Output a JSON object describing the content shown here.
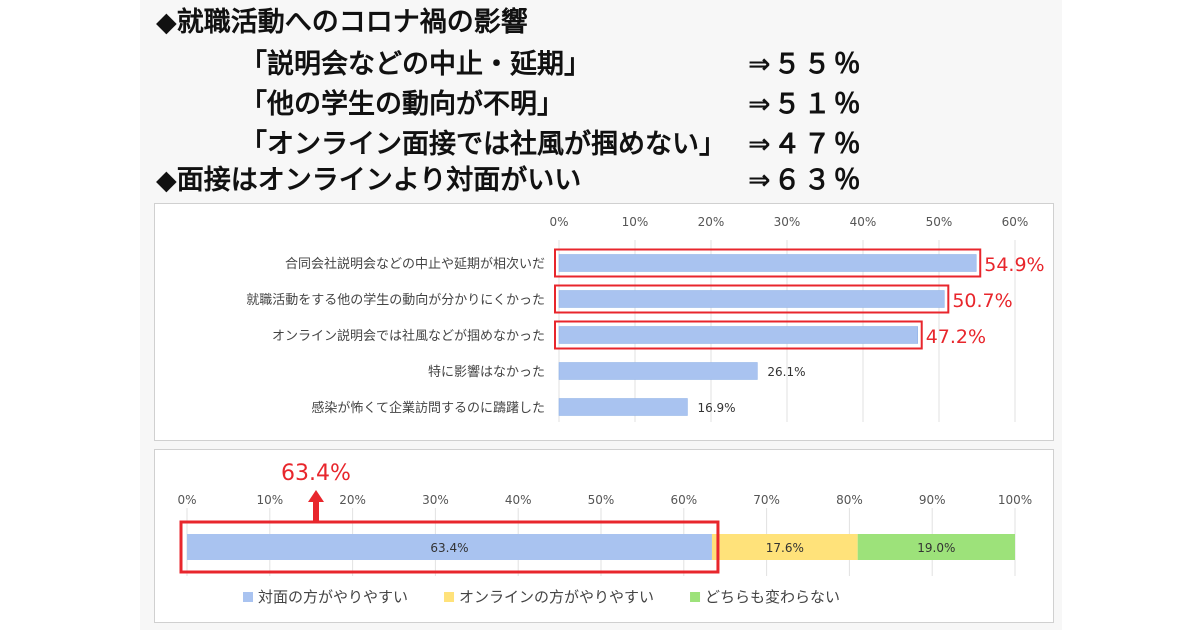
{
  "headlines": {
    "h1": "◆就職活動へのコロナ禍の影響",
    "h2": "「説明会などの中止・延期」",
    "h2_pct": "⇒５５％",
    "h3": "「他の学生の動向が不明」",
    "h3_pct": "⇒５１％",
    "h4": "「オンライン面接では社風が掴めない」",
    "h4_pct": "⇒４７％",
    "h5": "◆面接はオンラインより対面がいい",
    "h5_pct": "⇒６３％"
  },
  "chart_data": [
    {
      "type": "bar",
      "orientation": "horizontal",
      "categories": [
        "合同会社説明会などの中止や延期が相次いだ",
        "就職活動をする他の学生の動向が分かりにくかった",
        "オンライン説明会では社風などが掴めなかった",
        "特に影響はなかった",
        "感染が怖くて企業訪問するのに躊躇した"
      ],
      "values": [
        54.9,
        50.7,
        47.2,
        26.1,
        16.9
      ],
      "labels": [
        "54.9%",
        "50.7%",
        "47.2%",
        "26.1%",
        "16.9%"
      ],
      "highlighted": [
        true,
        true,
        true,
        false,
        false
      ],
      "xticks": [
        "0%",
        "10%",
        "20%",
        "30%",
        "40%",
        "50%",
        "60%"
      ],
      "xlim": [
        0,
        60
      ],
      "grid": true,
      "colors": {
        "bar": "#a9c3f0",
        "highlight": "#e8262c",
        "label": "#e8262c"
      }
    },
    {
      "type": "bar",
      "orientation": "horizontal",
      "stacked": true,
      "series": [
        {
          "name": "対面の方がやりやすい",
          "values": [
            63.4
          ],
          "label": "63.4%",
          "color": "#a9c3f0"
        },
        {
          "name": "オンラインの方がやりやすい",
          "values": [
            17.6
          ],
          "label": "17.6%",
          "color": "#ffe27a"
        },
        {
          "name": "どちらも変わらない",
          "values": [
            19.0
          ],
          "label": "19.0%",
          "color": "#9de27a"
        }
      ],
      "xticks": [
        "0%",
        "10%",
        "20%",
        "30%",
        "40%",
        "50%",
        "60%",
        "70%",
        "80%",
        "90%",
        "100%"
      ],
      "xlim": [
        0,
        100
      ],
      "grid": true,
      "annotation": "63.4%",
      "legend": "bottom",
      "colors": {
        "highlight": "#e8262c"
      }
    }
  ]
}
